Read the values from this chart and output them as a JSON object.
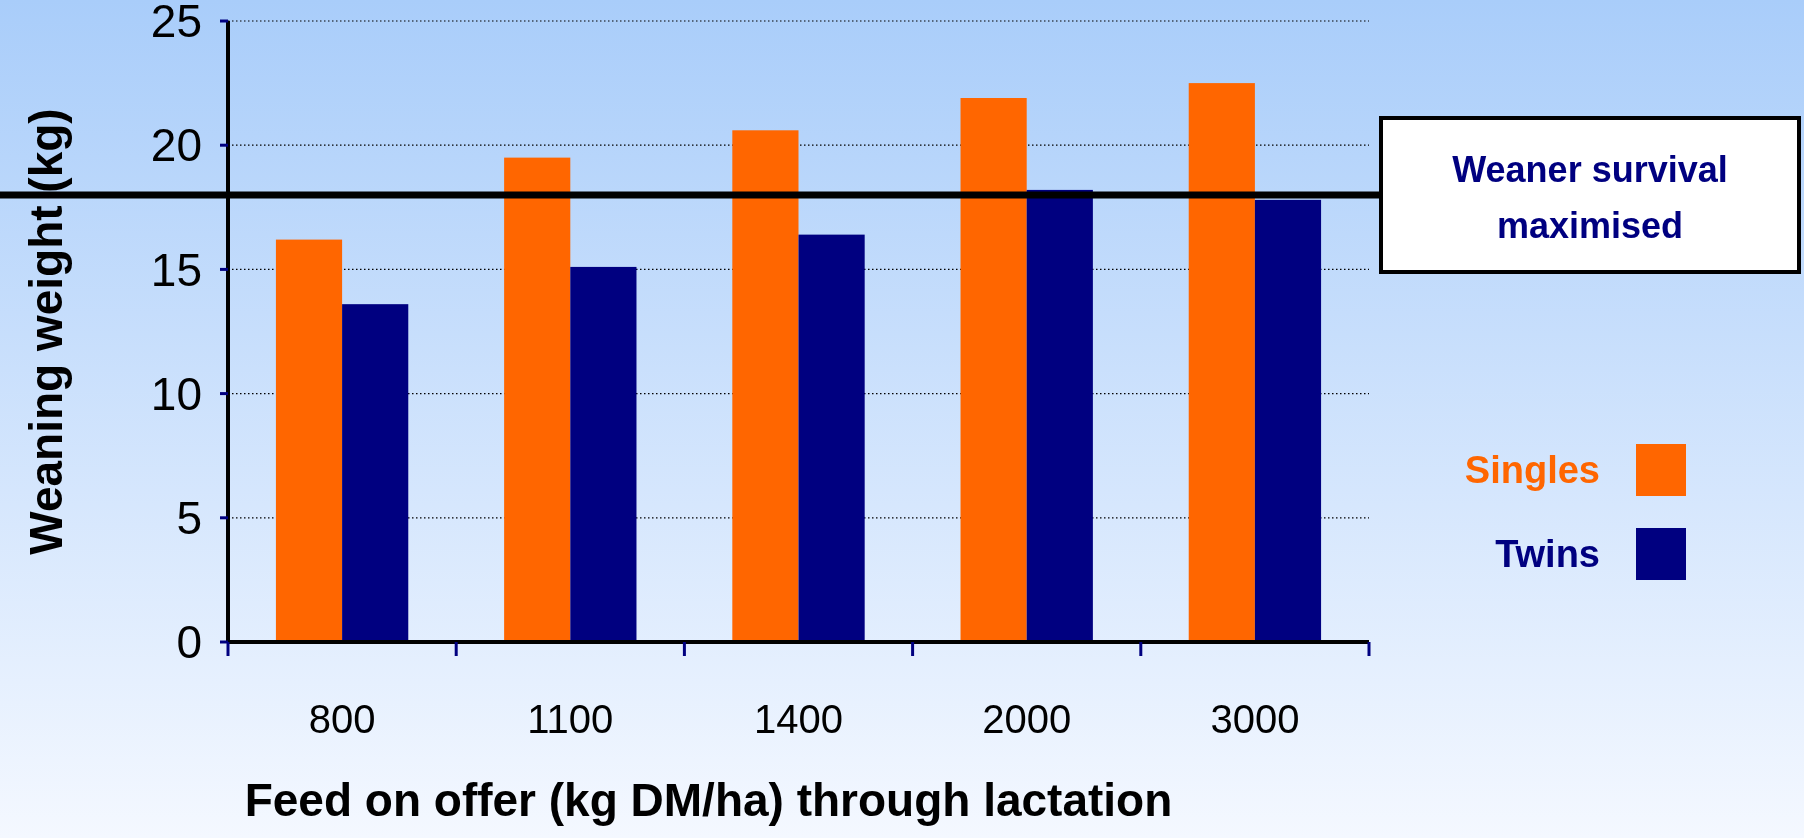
{
  "chart_data": {
    "type": "bar",
    "xlabel": "Feed on offer (kg DM/ha) through lactation",
    "ylabel": "Weaning weight (kg)",
    "categories": [
      "800",
      "1100",
      "1400",
      "2000",
      "3000"
    ],
    "series": [
      {
        "name": "Singles",
        "color": "#ff6600",
        "values": [
          16.2,
          19.5,
          20.6,
          21.9,
          22.5
        ]
      },
      {
        "name": "Twins",
        "color": "#000080",
        "values": [
          13.6,
          15.1,
          16.4,
          18.2,
          17.8
        ]
      }
    ],
    "ylim": [
      0,
      25
    ],
    "yticks": [
      0,
      5,
      10,
      15,
      20,
      25
    ],
    "grid": "y",
    "legend": "right",
    "ref_lines": [
      {
        "axis": "y",
        "value": 18,
        "label": "Weaner survival maximised",
        "color": "#000000"
      }
    ]
  }
}
